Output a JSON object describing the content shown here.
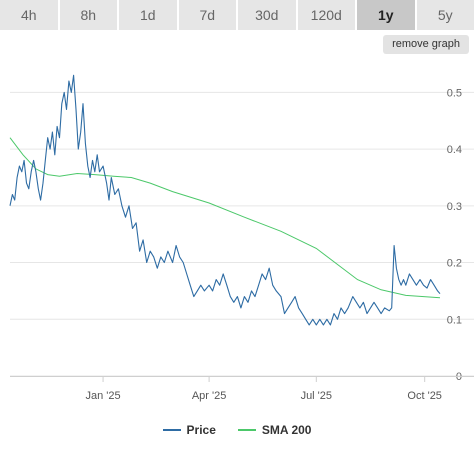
{
  "tabs": [
    {
      "label": "4h",
      "active": false
    },
    {
      "label": "8h",
      "active": false
    },
    {
      "label": "1d",
      "active": false
    },
    {
      "label": "7d",
      "active": false
    },
    {
      "label": "30d",
      "active": false
    },
    {
      "label": "120d",
      "active": false
    },
    {
      "label": "1y",
      "active": true
    },
    {
      "label": "5y",
      "active": false
    }
  ],
  "remove_graph_label": "remove graph",
  "chart_data": {
    "type": "line",
    "title": "",
    "xlabel": "",
    "ylabel": "",
    "x_range": [
      "2024-10-14",
      "2025-10-14"
    ],
    "ylim": [
      0,
      0.55
    ],
    "yticks": [
      "0",
      "0.1",
      "0.2",
      "0.3",
      "0.4",
      "0.5"
    ],
    "xticks": [
      {
        "date": "2025-01-01",
        "label": "Jan '25"
      },
      {
        "date": "2025-04-01",
        "label": "Apr '25"
      },
      {
        "date": "2025-07-01",
        "label": "Jul '25"
      },
      {
        "date": "2025-10-01",
        "label": "Oct '25"
      }
    ],
    "grid": true,
    "legend_position": "bottom-center",
    "series": [
      {
        "name": "Price",
        "color": "#2e6ca4",
        "points": [
          [
            "2024-10-14",
            0.3
          ],
          [
            "2024-10-16",
            0.32
          ],
          [
            "2024-10-18",
            0.31
          ],
          [
            "2024-10-20",
            0.35
          ],
          [
            "2024-10-22",
            0.37
          ],
          [
            "2024-10-24",
            0.36
          ],
          [
            "2024-10-26",
            0.38
          ],
          [
            "2024-10-28",
            0.34
          ],
          [
            "2024-10-30",
            0.33
          ],
          [
            "2024-11-01",
            0.36
          ],
          [
            "2024-11-03",
            0.38
          ],
          [
            "2024-11-05",
            0.36
          ],
          [
            "2024-11-07",
            0.33
          ],
          [
            "2024-11-09",
            0.31
          ],
          [
            "2024-11-11",
            0.34
          ],
          [
            "2024-11-13",
            0.38
          ],
          [
            "2024-11-15",
            0.42
          ],
          [
            "2024-11-17",
            0.4
          ],
          [
            "2024-11-19",
            0.43
          ],
          [
            "2024-11-21",
            0.39
          ],
          [
            "2024-11-23",
            0.44
          ],
          [
            "2024-11-25",
            0.42
          ],
          [
            "2024-11-27",
            0.48
          ],
          [
            "2024-11-29",
            0.5
          ],
          [
            "2024-12-01",
            0.47
          ],
          [
            "2024-12-03",
            0.52
          ],
          [
            "2024-12-05",
            0.5
          ],
          [
            "2024-12-07",
            0.53
          ],
          [
            "2024-12-09",
            0.47
          ],
          [
            "2024-12-11",
            0.4
          ],
          [
            "2024-12-13",
            0.43
          ],
          [
            "2024-12-15",
            0.48
          ],
          [
            "2024-12-17",
            0.41
          ],
          [
            "2024-12-19",
            0.37
          ],
          [
            "2024-12-21",
            0.35
          ],
          [
            "2024-12-23",
            0.38
          ],
          [
            "2024-12-25",
            0.36
          ],
          [
            "2024-12-27",
            0.39
          ],
          [
            "2024-12-29",
            0.36
          ],
          [
            "2025-01-01",
            0.37
          ],
          [
            "2025-01-04",
            0.34
          ],
          [
            "2025-01-06",
            0.31
          ],
          [
            "2025-01-08",
            0.35
          ],
          [
            "2025-01-11",
            0.32
          ],
          [
            "2025-01-14",
            0.33
          ],
          [
            "2025-01-17",
            0.3
          ],
          [
            "2025-01-20",
            0.28
          ],
          [
            "2025-01-23",
            0.3
          ],
          [
            "2025-01-26",
            0.26
          ],
          [
            "2025-01-29",
            0.27
          ],
          [
            "2025-02-01",
            0.22
          ],
          [
            "2025-02-04",
            0.24
          ],
          [
            "2025-02-07",
            0.2
          ],
          [
            "2025-02-10",
            0.22
          ],
          [
            "2025-02-13",
            0.21
          ],
          [
            "2025-02-16",
            0.19
          ],
          [
            "2025-02-19",
            0.21
          ],
          [
            "2025-02-22",
            0.2
          ],
          [
            "2025-02-25",
            0.22
          ],
          [
            "2025-03-01",
            0.2
          ],
          [
            "2025-03-04",
            0.23
          ],
          [
            "2025-03-07",
            0.21
          ],
          [
            "2025-03-10",
            0.2
          ],
          [
            "2025-03-13",
            0.18
          ],
          [
            "2025-03-16",
            0.16
          ],
          [
            "2025-03-19",
            0.14
          ],
          [
            "2025-03-22",
            0.15
          ],
          [
            "2025-03-25",
            0.16
          ],
          [
            "2025-03-28",
            0.15
          ],
          [
            "2025-04-01",
            0.16
          ],
          [
            "2025-04-04",
            0.15
          ],
          [
            "2025-04-07",
            0.17
          ],
          [
            "2025-04-10",
            0.16
          ],
          [
            "2025-04-13",
            0.18
          ],
          [
            "2025-04-16",
            0.16
          ],
          [
            "2025-04-19",
            0.14
          ],
          [
            "2025-04-22",
            0.13
          ],
          [
            "2025-04-25",
            0.14
          ],
          [
            "2025-04-28",
            0.12
          ],
          [
            "2025-05-01",
            0.14
          ],
          [
            "2025-05-04",
            0.13
          ],
          [
            "2025-05-07",
            0.15
          ],
          [
            "2025-05-10",
            0.14
          ],
          [
            "2025-05-13",
            0.16
          ],
          [
            "2025-05-16",
            0.18
          ],
          [
            "2025-05-19",
            0.17
          ],
          [
            "2025-05-22",
            0.19
          ],
          [
            "2025-05-25",
            0.16
          ],
          [
            "2025-05-28",
            0.15
          ],
          [
            "2025-06-01",
            0.14
          ],
          [
            "2025-06-04",
            0.11
          ],
          [
            "2025-06-07",
            0.12
          ],
          [
            "2025-06-10",
            0.13
          ],
          [
            "2025-06-13",
            0.14
          ],
          [
            "2025-06-16",
            0.12
          ],
          [
            "2025-06-19",
            0.11
          ],
          [
            "2025-06-22",
            0.1
          ],
          [
            "2025-06-25",
            0.09
          ],
          [
            "2025-06-28",
            0.1
          ],
          [
            "2025-07-01",
            0.09
          ],
          [
            "2025-07-04",
            0.1
          ],
          [
            "2025-07-07",
            0.09
          ],
          [
            "2025-07-10",
            0.1
          ],
          [
            "2025-07-13",
            0.09
          ],
          [
            "2025-07-16",
            0.11
          ],
          [
            "2025-07-19",
            0.1
          ],
          [
            "2025-07-22",
            0.12
          ],
          [
            "2025-07-25",
            0.11
          ],
          [
            "2025-07-28",
            0.12
          ],
          [
            "2025-08-01",
            0.14
          ],
          [
            "2025-08-04",
            0.13
          ],
          [
            "2025-08-07",
            0.12
          ],
          [
            "2025-08-10",
            0.13
          ],
          [
            "2025-08-13",
            0.11
          ],
          [
            "2025-08-16",
            0.12
          ],
          [
            "2025-08-19",
            0.13
          ],
          [
            "2025-08-22",
            0.12
          ],
          [
            "2025-08-25",
            0.11
          ],
          [
            "2025-08-28",
            0.12
          ],
          [
            "2025-09-01",
            0.115
          ],
          [
            "2025-09-03",
            0.12
          ],
          [
            "2025-09-05",
            0.23
          ],
          [
            "2025-09-07",
            0.19
          ],
          [
            "2025-09-09",
            0.17
          ],
          [
            "2025-09-11",
            0.16
          ],
          [
            "2025-09-13",
            0.17
          ],
          [
            "2025-09-15",
            0.16
          ],
          [
            "2025-09-18",
            0.18
          ],
          [
            "2025-09-21",
            0.17
          ],
          [
            "2025-09-24",
            0.16
          ],
          [
            "2025-09-27",
            0.17
          ],
          [
            "2025-09-30",
            0.16
          ],
          [
            "2025-10-03",
            0.155
          ],
          [
            "2025-10-06",
            0.17
          ],
          [
            "2025-10-09",
            0.16
          ],
          [
            "2025-10-12",
            0.15
          ],
          [
            "2025-10-14",
            0.145
          ]
        ]
      },
      {
        "name": "SMA 200",
        "color": "#4cc86a",
        "points": [
          [
            "2024-10-14",
            0.42
          ],
          [
            "2024-10-25",
            0.39
          ],
          [
            "2024-11-05",
            0.365
          ],
          [
            "2024-11-15",
            0.355
          ],
          [
            "2024-11-25",
            0.352
          ],
          [
            "2024-12-10",
            0.357
          ],
          [
            "2024-12-25",
            0.355
          ],
          [
            "2025-01-10",
            0.352
          ],
          [
            "2025-01-25",
            0.35
          ],
          [
            "2025-02-10",
            0.34
          ],
          [
            "2025-03-01",
            0.325
          ],
          [
            "2025-04-01",
            0.305
          ],
          [
            "2025-05-01",
            0.28
          ],
          [
            "2025-06-01",
            0.255
          ],
          [
            "2025-07-01",
            0.225
          ],
          [
            "2025-07-20",
            0.195
          ],
          [
            "2025-08-05",
            0.17
          ],
          [
            "2025-08-25",
            0.152
          ],
          [
            "2025-09-15",
            0.142
          ],
          [
            "2025-10-14",
            0.138
          ]
        ]
      }
    ]
  },
  "legend": {
    "items": [
      {
        "label": "Price",
        "color": "#2e6ca4"
      },
      {
        "label": "SMA 200",
        "color": "#4cc86a"
      }
    ]
  }
}
